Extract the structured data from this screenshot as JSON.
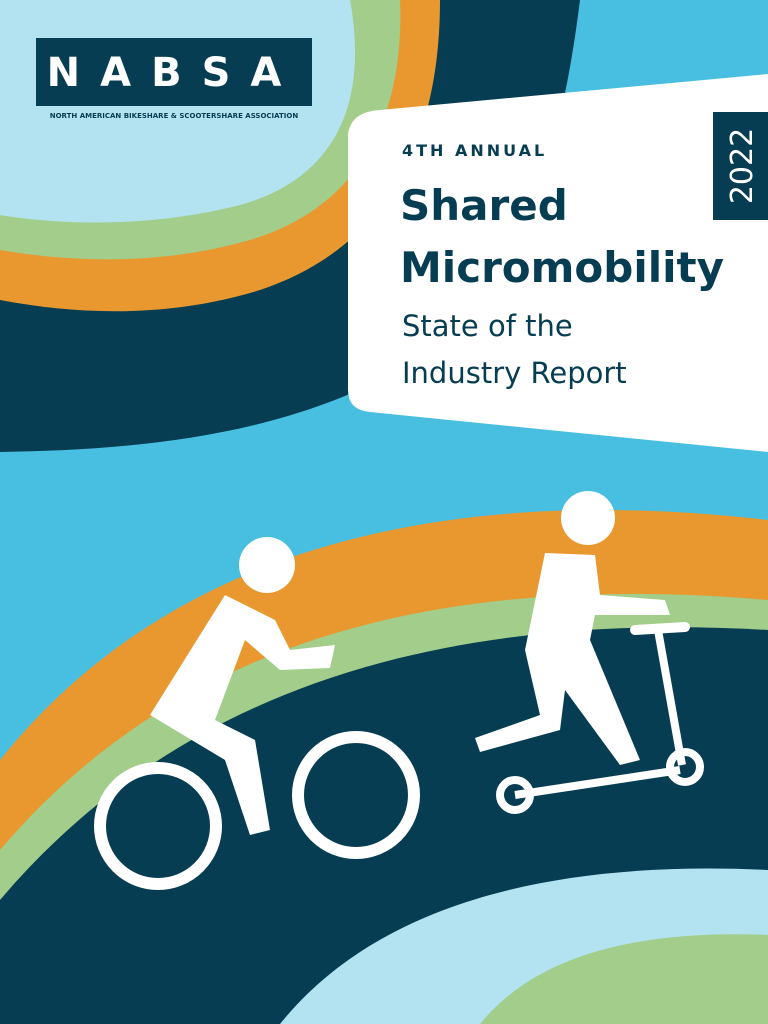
{
  "logo": {
    "name": "NABSA",
    "tagline": "NORTH AMERICAN BIKESHARE & SCOOTERSHARE ASSOCIATION"
  },
  "title_card": {
    "edition": "4TH ANNUAL",
    "title_lines": [
      "Shared",
      "Micromobility"
    ],
    "subtitle_lines": [
      "State of the",
      "Industry Report"
    ],
    "year": "2022"
  }
}
